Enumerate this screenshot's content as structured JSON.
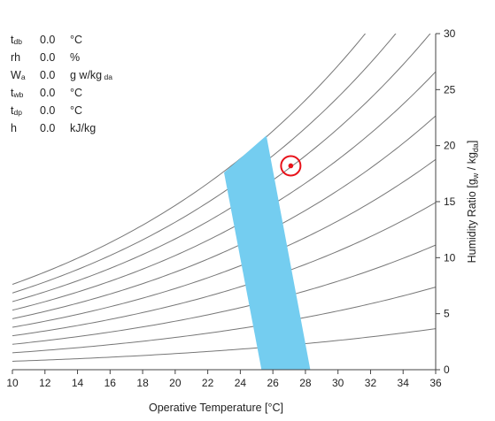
{
  "readout": [
    {
      "symbol": "t",
      "sub": "db",
      "value": "0.0",
      "unit": "°C",
      "unit_sub": ""
    },
    {
      "symbol": "rh",
      "sub": "",
      "value": "0.0",
      "unit": "%",
      "unit_sub": ""
    },
    {
      "symbol": "W",
      "sub": "a",
      "value": "0.0",
      "unit": "g w/kg",
      "unit_sub": "da"
    },
    {
      "symbol": "t",
      "sub": "wb",
      "value": "0.0",
      "unit": "°C",
      "unit_sub": ""
    },
    {
      "symbol": "t",
      "sub": "dp",
      "value": "0.0",
      "unit": "°C",
      "unit_sub": ""
    },
    {
      "symbol": "h",
      "sub": "",
      "value": "0.0",
      "unit": "kJ/kg",
      "unit_sub": ""
    }
  ],
  "chart_data": {
    "type": "psychrometric",
    "xlabel": "Operative Temperature [°C]",
    "ylabel": "Humidity Ratio [g_w / kg_da]",
    "ylabel_parts": {
      "main": "Humidity Ratio [g",
      "sub1": "w",
      "mid": " / kg",
      "sub2": "da",
      "end": "]"
    },
    "xlim": [
      10,
      36
    ],
    "ylim": [
      0,
      30
    ],
    "x_ticks": [
      "10",
      "12",
      "14",
      "16",
      "18",
      "20",
      "22",
      "24",
      "26",
      "28",
      "30",
      "32",
      "34",
      "36"
    ],
    "y_ticks": [
      "0",
      "5",
      "10",
      "15",
      "20",
      "25",
      "30"
    ],
    "rh_curves": [
      10,
      20,
      30,
      40,
      50,
      60,
      70,
      80,
      90,
      100
    ],
    "comfort_zone": {
      "points": [
        [
          23.0,
          17.6
        ],
        [
          25.6,
          20.9
        ],
        [
          28.3,
          0.0
        ],
        [
          25.3,
          0.0
        ]
      ],
      "color": "#74cdf0"
    },
    "current_point": {
      "x": 27.1,
      "y": 18.2,
      "color": "#e8121a"
    },
    "colors": {
      "curve": "#777777",
      "axis": "#444444"
    }
  }
}
